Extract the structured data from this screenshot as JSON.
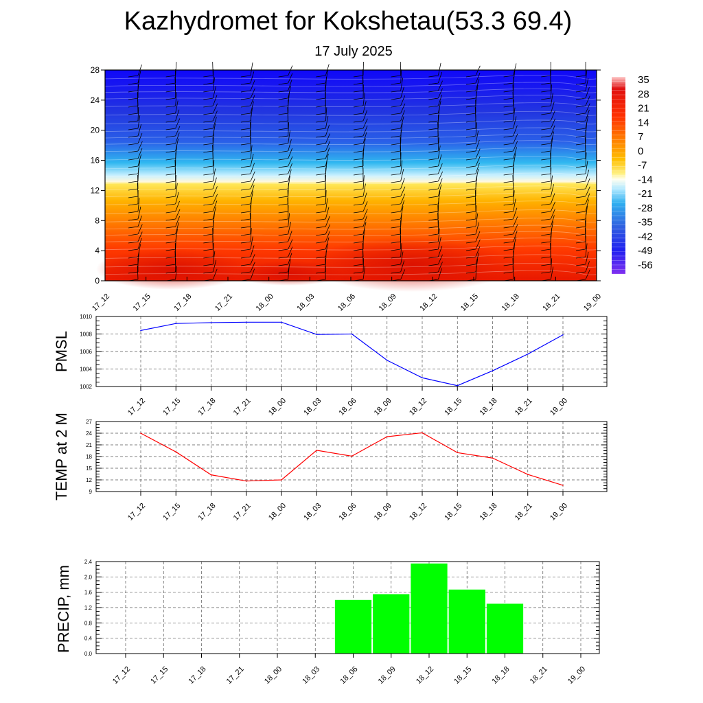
{
  "header": {
    "title": "Kazhydromet for Kokshetau(53.3 69.4)",
    "subtitle": "17 July 2025"
  },
  "colors": {
    "pmsl_line": "#0000ff",
    "temp_line": "#ff0000",
    "precip_bar": "#00ff00",
    "frame": "#000000",
    "grid": "#555555"
  },
  "time_labels": [
    "17_12",
    "17_15",
    "17_18",
    "17_21",
    "18_00",
    "18_03",
    "18_06",
    "18_09",
    "18_12",
    "18_15",
    "18_18",
    "18_21",
    "19_00"
  ],
  "chart_data": [
    {
      "type": "heatmap",
      "variable": "temperature",
      "x": [
        "17_12",
        "17_15",
        "17_18",
        "17_21",
        "18_00",
        "18_03",
        "18_06",
        "18_09",
        "18_12",
        "18_15",
        "18_18",
        "18_21",
        "19_00"
      ],
      "ylim": [
        0,
        28
      ],
      "yticks": [
        0,
        4,
        8,
        12,
        16,
        20,
        24,
        28
      ],
      "colorbar": {
        "labels": [
          "35",
          "28",
          "21",
          "14",
          "7",
          "0",
          "-7",
          "-14",
          "-21",
          "-28",
          "-35",
          "-42",
          "-49",
          "-56"
        ],
        "range": [
          -63,
          38
        ]
      },
      "wind_barbs": true
    },
    {
      "type": "line",
      "ylabel": "PMSL",
      "x": [
        "17_12",
        "17_15",
        "17_18",
        "17_21",
        "18_00",
        "18_03",
        "18_06",
        "18_09",
        "18_12",
        "18_15",
        "18_18",
        "18_21",
        "19_00"
      ],
      "values": [
        1008.4,
        1009.2,
        1009.3,
        1009.35,
        1009.35,
        1007.95,
        1008.0,
        1005.0,
        1003.0,
        1002.1,
        1003.8,
        1005.7,
        1007.9
      ],
      "ylim": [
        1002,
        1010
      ],
      "yticks": [
        1002,
        1004,
        1006,
        1008,
        1010
      ],
      "grid": true
    },
    {
      "type": "line",
      "ylabel": "TEMP at 2 M",
      "x": [
        "17_12",
        "17_15",
        "17_18",
        "17_21",
        "18_00",
        "18_03",
        "18_06",
        "18_09",
        "18_12",
        "18_15",
        "18_18",
        "18_21",
        "19_00"
      ],
      "values": [
        24.0,
        19.2,
        13.3,
        11.7,
        12.0,
        19.6,
        18.1,
        23.1,
        24.1,
        19.0,
        17.6,
        13.4,
        10.6
      ],
      "ylim": [
        9,
        27
      ],
      "yticks": [
        9,
        12,
        15,
        18,
        21,
        24,
        27
      ],
      "grid": true
    },
    {
      "type": "bar",
      "ylabel": "PRECIP, mm",
      "categories": [
        "17_12",
        "17_15",
        "17_18",
        "17_21",
        "18_00",
        "18_03",
        "18_06",
        "18_09",
        "18_12",
        "18_15",
        "18_18",
        "18_21",
        "19_00"
      ],
      "values": [
        0,
        0,
        0,
        0,
        0,
        0,
        1.4,
        1.55,
        2.35,
        1.67,
        1.3,
        0,
        0
      ],
      "ylim": [
        0,
        2.4
      ],
      "yticks": [
        "0.0",
        "0.4",
        "0.8",
        "1.2",
        "1.6",
        "2.0",
        "2.4"
      ],
      "grid": true
    }
  ]
}
